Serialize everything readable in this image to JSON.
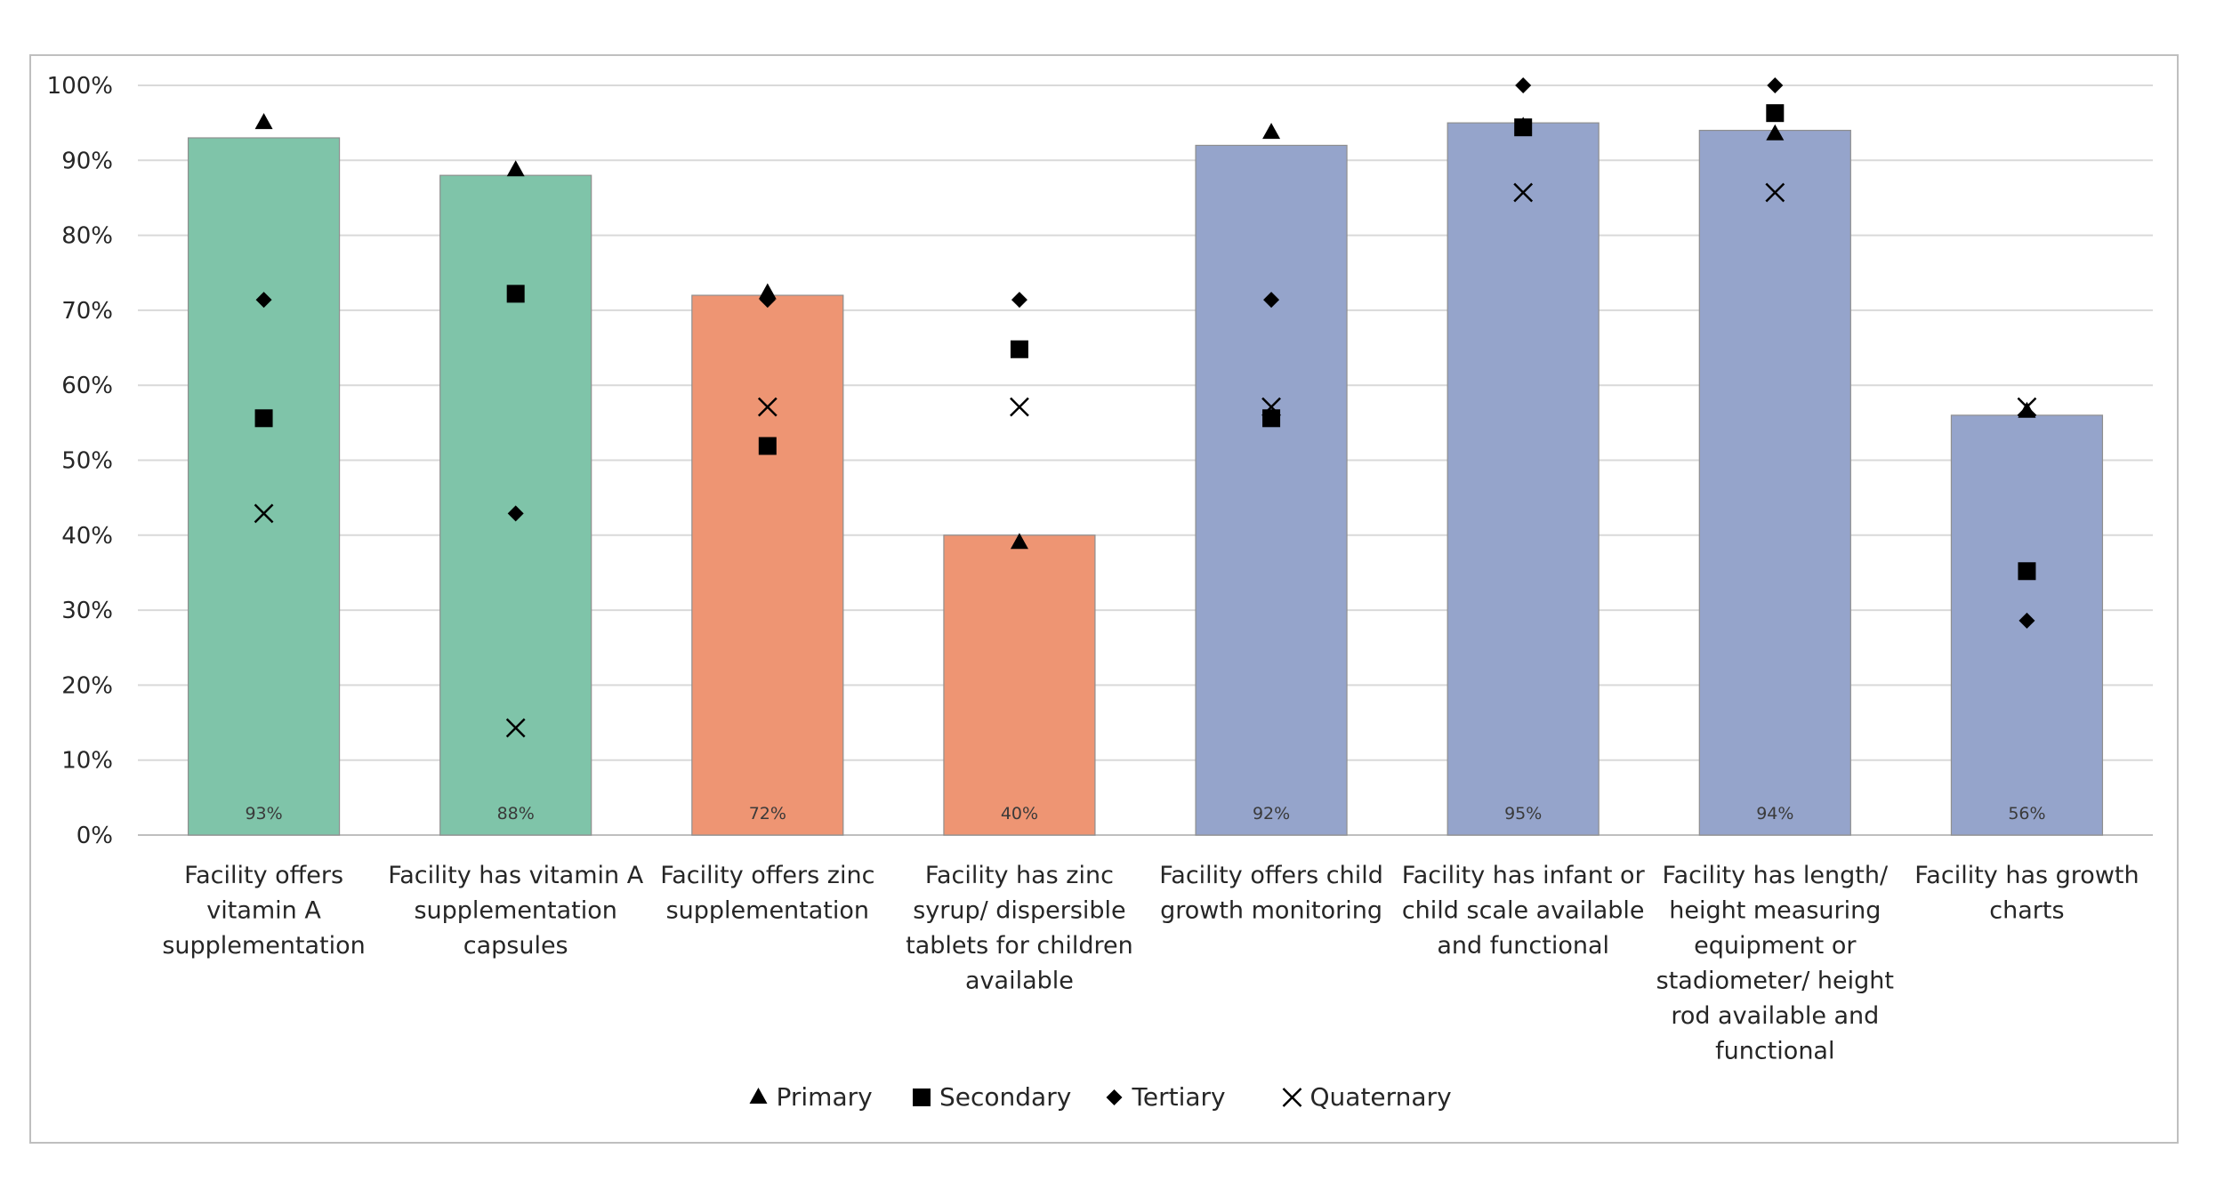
{
  "chart_data": {
    "type": "bar",
    "title": "",
    "xlabel": "",
    "ylabel": "",
    "ylim": [
      0,
      100
    ],
    "yticks": [
      "0%",
      "10%",
      "20%",
      "30%",
      "40%",
      "50%",
      "60%",
      "70%",
      "80%",
      "90%",
      "100%"
    ],
    "categories": [
      [
        "Facility offers",
        "vitamin A",
        "supplementation"
      ],
      [
        "Facility has vitamin A",
        "supplementation",
        "capsules"
      ],
      [
        "Facility offers zinc",
        "supplementation"
      ],
      [
        "Facility has zinc",
        "syrup/ dispersible",
        "tablets for children",
        "available"
      ],
      [
        "Facility offers child",
        "growth monitoring"
      ],
      [
        "Facility has infant or",
        "child scale available",
        "and functional"
      ],
      [
        "Facility has length/",
        "height measuring",
        "equipment or",
        "stadiometer/ height",
        "rod available and",
        "functional"
      ],
      [
        "Facility has growth",
        "charts"
      ]
    ],
    "values": [
      93,
      88,
      72,
      40,
      92,
      95,
      94,
      56
    ],
    "value_labels": [
      "93%",
      "88%",
      "72%",
      "40%",
      "92%",
      "95%",
      "94%",
      "56%"
    ],
    "bar_colors": [
      "#7fc4a9",
      "#7fc4a9",
      "#ee9573",
      "#ee9573",
      "#95a4cb",
      "#95a4cb",
      "#95a4cb",
      "#95a4cb"
    ],
    "series": [
      {
        "name": "Primary",
        "marker": "triangle",
        "values": [
          95,
          88.7,
          72.3,
          39,
          93.7,
          94.5,
          93.5,
          56.5
        ]
      },
      {
        "name": "Secondary",
        "marker": "square",
        "values": [
          55.6,
          72.2,
          51.9,
          64.8,
          55.6,
          94.4,
          96.3,
          35.2
        ]
      },
      {
        "name": "Tertiary",
        "marker": "diamond",
        "values": [
          71.4,
          42.9,
          71.4,
          71.4,
          71.4,
          100,
          100,
          28.6
        ]
      },
      {
        "name": "Quaternary",
        "marker": "x",
        "values": [
          42.9,
          14.3,
          57.1,
          57.1,
          57.1,
          85.7,
          85.7,
          57.1
        ]
      }
    ],
    "legend_position": "bottom-center",
    "grid": true,
    "colors": {
      "grid": "#d9d9d9",
      "axis": "#bfbfbf",
      "marker": "#000000",
      "text": "#262626"
    }
  }
}
